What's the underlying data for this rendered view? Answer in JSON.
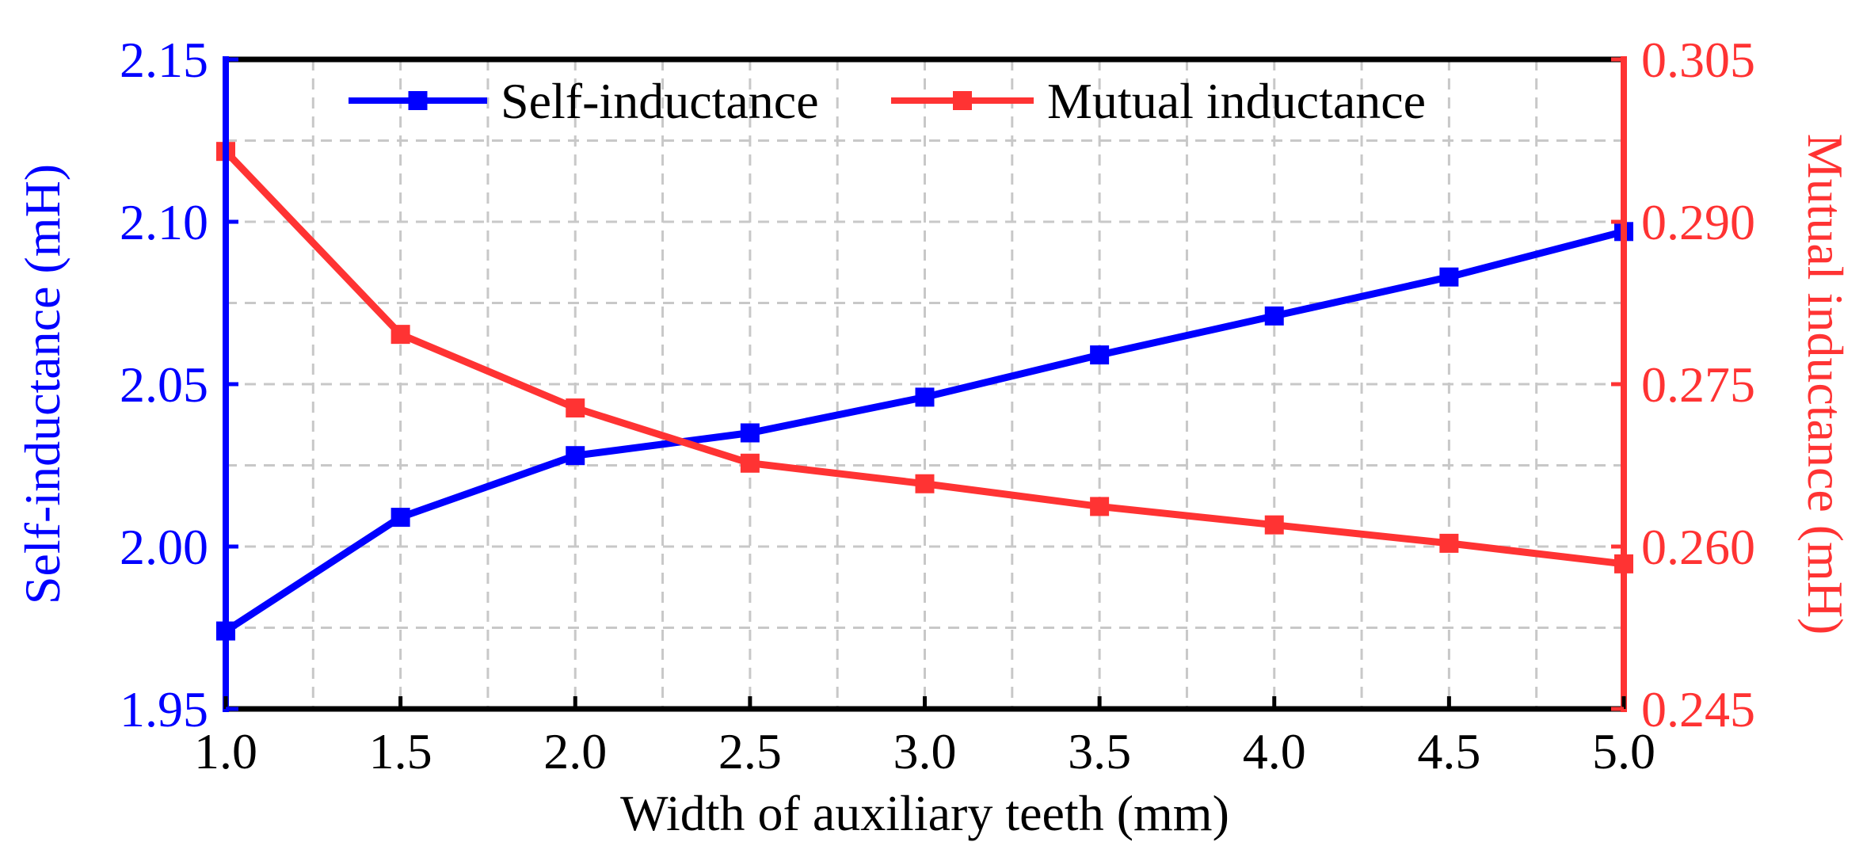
{
  "chart_data": {
    "type": "line",
    "x": [
      1.0,
      1.5,
      2.0,
      2.5,
      3.0,
      3.5,
      4.0,
      4.5,
      5.0
    ],
    "x_tick_labels": [
      "1.0",
      "1.5",
      "2.0",
      "2.5",
      "3.0",
      "3.5",
      "4.0",
      "4.5",
      "5.0"
    ],
    "xlabel": "Width of auxiliary teeth (mm)",
    "xlim": [
      1.0,
      5.0
    ],
    "grid": true,
    "legend_position": "top",
    "series": [
      {
        "name": "Self-inductance",
        "axis": "left",
        "color": "#0000ff",
        "marker": "square",
        "values": [
          1.974,
          2.009,
          2.028,
          2.035,
          2.046,
          2.059,
          2.071,
          2.083,
          2.097
        ]
      },
      {
        "name": "Mutual inductance",
        "axis": "right",
        "color": "#ff3333",
        "marker": "square",
        "values": [
          0.2965,
          0.2796,
          0.2728,
          0.2677,
          0.2658,
          0.2637,
          0.262,
          0.2603,
          0.2584
        ]
      }
    ],
    "y_left": {
      "label": "Self-inductance (mH)",
      "ylim": [
        1.95,
        2.15
      ],
      "ticks": [
        1.95,
        2.0,
        2.05,
        2.1,
        2.15
      ],
      "tick_labels": [
        "1.95",
        "2.00",
        "2.05",
        "2.10",
        "2.15"
      ],
      "color": "#0000ff"
    },
    "y_right": {
      "label": "Mutual inductance (mH)",
      "ylim": [
        0.245,
        0.305
      ],
      "ticks": [
        0.245,
        0.26,
        0.275,
        0.29,
        0.305
      ],
      "tick_labels": [
        "0.245",
        "0.260",
        "0.275",
        "0.290",
        "0.305"
      ],
      "color": "#ff3333"
    }
  }
}
